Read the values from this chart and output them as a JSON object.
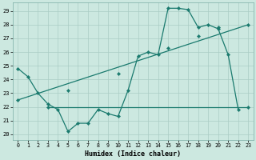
{
  "title": "",
  "xlabel": "Humidex (Indice chaleur)",
  "background_color": "#cce8e0",
  "line_color": "#1a7a6e",
  "grid_color": "#aaccc4",
  "xlim": [
    -0.5,
    23.5
  ],
  "ylim": [
    19.6,
    29.6
  ],
  "yticks": [
    20,
    21,
    22,
    23,
    24,
    25,
    26,
    27,
    28,
    29
  ],
  "xticks": [
    0,
    1,
    2,
    3,
    4,
    5,
    6,
    7,
    8,
    9,
    10,
    11,
    12,
    13,
    14,
    15,
    16,
    17,
    18,
    19,
    20,
    21,
    22,
    23
  ],
  "line1_x": [
    0,
    1,
    2,
    3,
    4,
    5,
    6,
    7,
    8,
    9,
    10,
    11,
    12,
    13,
    14,
    15,
    16,
    17,
    18,
    19,
    20,
    21,
    22
  ],
  "line1_y": [
    24.8,
    24.2,
    23.0,
    22.2,
    21.8,
    20.2,
    20.8,
    20.8,
    21.8,
    21.5,
    21.3,
    23.2,
    25.7,
    26.0,
    25.8,
    29.2,
    29.2,
    29.1,
    27.8,
    28.0,
    27.7,
    25.8,
    21.8
  ],
  "line2_x": [
    3,
    23
  ],
  "line2_y": [
    22.0,
    22.0
  ],
  "line3_x": [
    0,
    23
  ],
  "line3_y": [
    22.5,
    28.0
  ],
  "marker_x": [
    0,
    3,
    10,
    15,
    18,
    20,
    23
  ],
  "marker2_y": [
    22.0,
    22.0,
    22.0,
    22.0,
    22.0,
    22.0,
    22.0
  ],
  "marker3_x": [
    0,
    5,
    10,
    15,
    18,
    20,
    23
  ],
  "marker3_y": [
    22.5,
    23.2,
    24.4,
    26.3,
    27.2,
    27.8,
    28.0
  ]
}
